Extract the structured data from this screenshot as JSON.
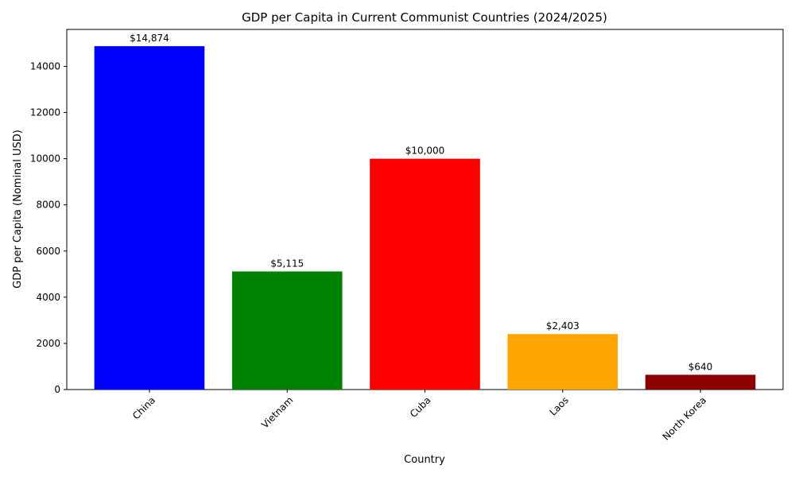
{
  "chart_data": {
    "type": "bar",
    "title": "GDP per Capita in Current Communist Countries (2024/2025)",
    "xlabel": "Country",
    "ylabel": "GDP per Capita (Nominal USD)",
    "categories": [
      "China",
      "Vietnam",
      "Cuba",
      "Laos",
      "North Korea"
    ],
    "values": [
      14874,
      5115,
      10000,
      2403,
      640
    ],
    "data_labels": [
      "$14,874",
      "$5,115",
      "$10,000",
      "$2,403",
      "$640"
    ],
    "colors": [
      "#0000ff",
      "#008000",
      "#ff0000",
      "#ffa500",
      "#8b0000"
    ],
    "ylim": [
      0,
      15600
    ],
    "yticks": [
      0,
      2000,
      4000,
      6000,
      8000,
      10000,
      12000,
      14000
    ],
    "ytick_labels": [
      "0",
      "2000",
      "4000",
      "6000",
      "8000",
      "10000",
      "12000",
      "14000"
    ],
    "xtick_rotation_deg": -45,
    "grid": false,
    "legend": "none"
  }
}
